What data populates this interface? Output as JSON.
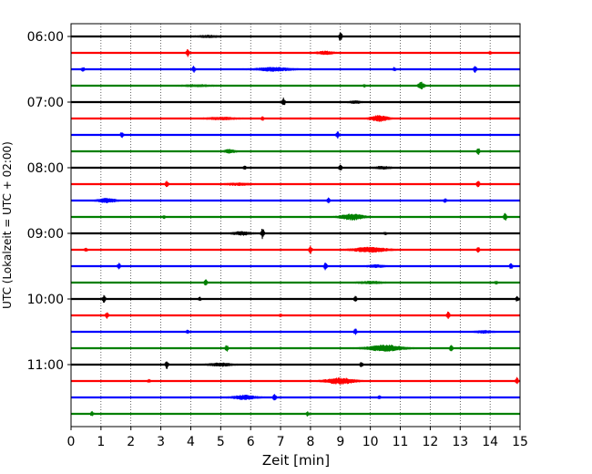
{
  "chart_data": {
    "type": "line",
    "title": "",
    "xlabel": "Zeit  [min]",
    "ylabel": "UTC (Lokalzeit = UTC + 02:00)",
    "xlim": [
      0,
      15
    ],
    "x_ticks": [
      0,
      1,
      2,
      3,
      4,
      5,
      6,
      7,
      8,
      9,
      10,
      11,
      12,
      13,
      14,
      15
    ],
    "y_tick_labels": [
      "06:00",
      "07:00",
      "08:00",
      "09:00",
      "10:00",
      "11:00"
    ],
    "grid": "vertical dotted lines at each minute",
    "trace_colors": [
      "#000000",
      "#ff0000",
      "#0000ff",
      "#008000"
    ],
    "traces": [
      {
        "start": "06:00",
        "color": "#000000",
        "events": [
          {
            "t": 4.6,
            "a": 0.3,
            "w": 0.4
          },
          {
            "t": 9.0,
            "a": 1.6,
            "w": 0.05
          }
        ]
      },
      {
        "start": "06:15",
        "color": "#ff0000",
        "events": [
          {
            "t": 3.9,
            "a": 1.3,
            "w": 0.05
          },
          {
            "t": 8.5,
            "a": 0.5,
            "w": 0.3
          },
          {
            "t": 14.0,
            "a": 0.6,
            "w": 0.05
          }
        ]
      },
      {
        "start": "06:30",
        "color": "#0000ff",
        "events": [
          {
            "t": 0.4,
            "a": 0.7,
            "w": 0.05
          },
          {
            "t": 4.1,
            "a": 1.2,
            "w": 0.05
          },
          {
            "t": 6.8,
            "a": 0.6,
            "w": 0.6
          },
          {
            "t": 10.8,
            "a": 0.6,
            "w": 0.05
          },
          {
            "t": 13.5,
            "a": 1.2,
            "w": 0.05
          }
        ]
      },
      {
        "start": "06:45",
        "color": "#008000",
        "events": [
          {
            "t": 4.2,
            "a": 0.3,
            "w": 0.5
          },
          {
            "t": 9.8,
            "a": 0.4,
            "w": 0.05
          },
          {
            "t": 11.7,
            "a": 1.2,
            "w": 0.1
          }
        ]
      },
      {
        "start": "07:00",
        "color": "#000000",
        "events": [
          {
            "t": 7.1,
            "a": 1.4,
            "w": 0.05
          },
          {
            "t": 9.5,
            "a": 0.4,
            "w": 0.2
          }
        ]
      },
      {
        "start": "07:15",
        "color": "#ff0000",
        "events": [
          {
            "t": 5.0,
            "a": 0.4,
            "w": 0.5
          },
          {
            "t": 6.4,
            "a": 0.6,
            "w": 0.05
          },
          {
            "t": 10.3,
            "a": 1.0,
            "w": 0.3
          }
        ]
      },
      {
        "start": "07:30",
        "color": "#0000ff",
        "events": [
          {
            "t": 1.7,
            "a": 1.0,
            "w": 0.05
          },
          {
            "t": 8.9,
            "a": 1.2,
            "w": 0.05
          }
        ]
      },
      {
        "start": "07:45",
        "color": "#008000",
        "events": [
          {
            "t": 5.3,
            "a": 0.6,
            "w": 0.2
          },
          {
            "t": 13.6,
            "a": 1.2,
            "w": 0.05
          }
        ]
      },
      {
        "start": "08:00",
        "color": "#000000",
        "events": [
          {
            "t": 5.8,
            "a": 0.6,
            "w": 0.05
          },
          {
            "t": 9.0,
            "a": 1.2,
            "w": 0.05
          },
          {
            "t": 10.4,
            "a": 0.4,
            "w": 0.3
          }
        ]
      },
      {
        "start": "08:15",
        "color": "#ff0000",
        "events": [
          {
            "t": 3.2,
            "a": 1.0,
            "w": 0.05
          },
          {
            "t": 5.6,
            "a": 0.4,
            "w": 0.4
          },
          {
            "t": 13.6,
            "a": 1.3,
            "w": 0.05
          }
        ]
      },
      {
        "start": "08:30",
        "color": "#0000ff",
        "events": [
          {
            "t": 1.2,
            "a": 0.7,
            "w": 0.3
          },
          {
            "t": 8.6,
            "a": 0.8,
            "w": 0.05
          },
          {
            "t": 12.5,
            "a": 0.7,
            "w": 0.05
          }
        ]
      },
      {
        "start": "08:45",
        "color": "#008000",
        "events": [
          {
            "t": 3.1,
            "a": 0.5,
            "w": 0.05
          },
          {
            "t": 9.4,
            "a": 1.0,
            "w": 0.4
          },
          {
            "t": 14.5,
            "a": 1.2,
            "w": 0.05
          }
        ]
      },
      {
        "start": "09:00",
        "color": "#000000",
        "events": [
          {
            "t": 5.7,
            "a": 0.6,
            "w": 0.3
          },
          {
            "t": 6.4,
            "a": 1.8,
            "w": 0.05
          },
          {
            "t": 10.5,
            "a": 0.4,
            "w": 0.05
          }
        ]
      },
      {
        "start": "09:15",
        "color": "#ff0000",
        "events": [
          {
            "t": 0.5,
            "a": 0.6,
            "w": 0.05
          },
          {
            "t": 8.0,
            "a": 1.3,
            "w": 0.05
          },
          {
            "t": 10.0,
            "a": 0.8,
            "w": 0.6
          },
          {
            "t": 13.6,
            "a": 1.1,
            "w": 0.05
          }
        ]
      },
      {
        "start": "09:30",
        "color": "#0000ff",
        "events": [
          {
            "t": 1.6,
            "a": 1.0,
            "w": 0.05
          },
          {
            "t": 8.5,
            "a": 1.2,
            "w": 0.05
          },
          {
            "t": 10.2,
            "a": 0.4,
            "w": 0.3
          },
          {
            "t": 14.7,
            "a": 1.0,
            "w": 0.05
          }
        ]
      },
      {
        "start": "09:45",
        "color": "#008000",
        "events": [
          {
            "t": 4.5,
            "a": 1.0,
            "w": 0.05
          },
          {
            "t": 10.0,
            "a": 0.4,
            "w": 0.4
          },
          {
            "t": 14.2,
            "a": 0.5,
            "w": 0.05
          }
        ]
      },
      {
        "start": "10:00",
        "color": "#000000",
        "events": [
          {
            "t": 1.1,
            "a": 1.2,
            "w": 0.05
          },
          {
            "t": 4.3,
            "a": 0.6,
            "w": 0.05
          },
          {
            "t": 9.5,
            "a": 1.0,
            "w": 0.05
          },
          {
            "t": 14.9,
            "a": 0.8,
            "w": 0.05
          }
        ]
      },
      {
        "start": "10:15",
        "color": "#ff0000",
        "events": [
          {
            "t": 1.2,
            "a": 1.1,
            "w": 0.05
          },
          {
            "t": 7.0,
            "a": 0.4,
            "w": 0.05
          },
          {
            "t": 12.6,
            "a": 1.2,
            "w": 0.05
          }
        ]
      },
      {
        "start": "10:30",
        "color": "#0000ff",
        "events": [
          {
            "t": 3.9,
            "a": 0.6,
            "w": 0.05
          },
          {
            "t": 9.5,
            "a": 1.0,
            "w": 0.05
          },
          {
            "t": 13.8,
            "a": 0.4,
            "w": 0.3
          }
        ]
      },
      {
        "start": "10:45",
        "color": "#008000",
        "events": [
          {
            "t": 5.2,
            "a": 1.1,
            "w": 0.05
          },
          {
            "t": 10.5,
            "a": 1.0,
            "w": 0.6
          },
          {
            "t": 12.7,
            "a": 1.2,
            "w": 0.05
          }
        ]
      },
      {
        "start": "11:00",
        "color": "#000000",
        "events": [
          {
            "t": 3.2,
            "a": 1.4,
            "w": 0.05
          },
          {
            "t": 5.0,
            "a": 0.5,
            "w": 0.4
          },
          {
            "t": 9.7,
            "a": 0.9,
            "w": 0.05
          }
        ]
      },
      {
        "start": "11:15",
        "color": "#ff0000",
        "events": [
          {
            "t": 2.6,
            "a": 0.5,
            "w": 0.05
          },
          {
            "t": 9.0,
            "a": 1.0,
            "w": 0.5
          },
          {
            "t": 14.9,
            "a": 1.2,
            "w": 0.05
          }
        ]
      },
      {
        "start": "11:30",
        "color": "#0000ff",
        "events": [
          {
            "t": 5.8,
            "a": 0.7,
            "w": 0.4
          },
          {
            "t": 6.8,
            "a": 1.3,
            "w": 0.05
          },
          {
            "t": 10.3,
            "a": 0.5,
            "w": 0.05
          }
        ]
      },
      {
        "start": "11:45",
        "color": "#008000",
        "events": [
          {
            "t": 0.7,
            "a": 0.8,
            "w": 0.05
          },
          {
            "t": 7.9,
            "a": 0.7,
            "w": 0.05
          }
        ]
      }
    ]
  }
}
